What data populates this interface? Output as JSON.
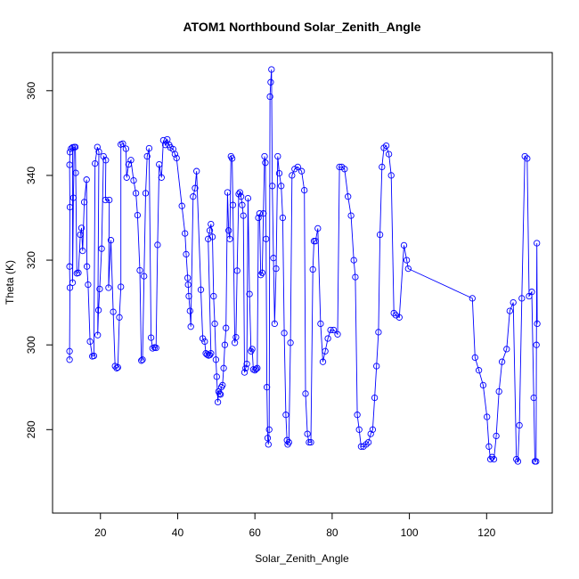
{
  "chart_data": {
    "type": "line",
    "title": "ATOM1 Northbound Solar_Zenith_Angle",
    "xlabel": "Solar_Zenith_Angle",
    "ylabel": "Theta (K)",
    "xlim": [
      7.6,
      137.0
    ],
    "ylim": [
      260.3,
      369.0
    ],
    "xticks": [
      20,
      40,
      60,
      80,
      100,
      120
    ],
    "yticks": [
      280,
      300,
      320,
      340,
      360
    ],
    "grid": false,
    "color": "#0000ff",
    "marker": "open-circle",
    "series": [
      {
        "values": [
          [
            12.0,
            296.5
          ],
          [
            12.0,
            298.5
          ],
          [
            12.1,
            313.5
          ],
          [
            12.0,
            318.5
          ],
          [
            12.1,
            332.5
          ],
          [
            12.0,
            342.5
          ],
          [
            12.1,
            345.5
          ],
          [
            12.4,
            346.3
          ],
          [
            12.8,
            346.6
          ],
          [
            12.8,
            314.7
          ],
          [
            13.0,
            334.7
          ],
          [
            13.2,
            346.7
          ],
          [
            13.5,
            346.7
          ],
          [
            13.6,
            340.6
          ],
          [
            13.9,
            316.9
          ],
          [
            14.3,
            317.0
          ],
          [
            14.8,
            326.0
          ],
          [
            15.1,
            327.6
          ],
          [
            15.4,
            322.2
          ],
          [
            15.8,
            333.7
          ],
          [
            16.4,
            339.0
          ],
          [
            16.5,
            318.5
          ],
          [
            16.8,
            314.2
          ],
          [
            17.3,
            300.8
          ],
          [
            17.9,
            297.3
          ],
          [
            18.3,
            297.4
          ],
          [
            18.6,
            342.8
          ],
          [
            19.2,
            346.7
          ],
          [
            19.6,
            345.6
          ],
          [
            19.3,
            302.3
          ],
          [
            19.5,
            308.2
          ],
          [
            19.8,
            313.2
          ],
          [
            20.3,
            322.7
          ],
          [
            20.8,
            344.5
          ],
          [
            21.4,
            343.6
          ],
          [
            21.3,
            334.2
          ],
          [
            22.3,
            334.2
          ],
          [
            22.1,
            313.5
          ],
          [
            22.7,
            324.7
          ],
          [
            23.3,
            307.8
          ],
          [
            23.8,
            295.0
          ],
          [
            24.2,
            294.5
          ],
          [
            24.5,
            294.7
          ],
          [
            24.9,
            306.5
          ],
          [
            25.3,
            313.7
          ],
          [
            25.3,
            347.3
          ],
          [
            25.8,
            347.5
          ],
          [
            26.6,
            346.3
          ],
          [
            26.8,
            339.5
          ],
          [
            27.3,
            342.6
          ],
          [
            27.9,
            343.6
          ],
          [
            28.6,
            338.8
          ],
          [
            29.2,
            335.8
          ],
          [
            29.6,
            330.6
          ],
          [
            30.2,
            317.6
          ],
          [
            30.6,
            296.3
          ],
          [
            30.9,
            296.5
          ],
          [
            31.3,
            316.2
          ],
          [
            31.7,
            335.8
          ],
          [
            32.1,
            344.5
          ],
          [
            32.6,
            346.4
          ],
          [
            33.1,
            301.7
          ],
          [
            33.5,
            299.2
          ],
          [
            34.0,
            299.4
          ],
          [
            34.4,
            299.3
          ],
          [
            34.8,
            323.6
          ],
          [
            35.2,
            342.6
          ],
          [
            35.8,
            339.5
          ],
          [
            36.3,
            348.3
          ],
          [
            36.8,
            347.2
          ],
          [
            37.3,
            348.5
          ],
          [
            37.8,
            347.2
          ],
          [
            38.1,
            346.6
          ],
          [
            38.8,
            346.2
          ],
          [
            39.3,
            345.0
          ],
          [
            39.7,
            344.1
          ],
          [
            41.1,
            332.8
          ],
          [
            41.9,
            326.3
          ],
          [
            42.2,
            321.4
          ],
          [
            42.6,
            315.8
          ],
          [
            42.7,
            314.2
          ],
          [
            42.9,
            311.5
          ],
          [
            43.2,
            308.0
          ],
          [
            43.4,
            304.3
          ],
          [
            44.0,
            335.0
          ],
          [
            44.5,
            337.0
          ],
          [
            44.9,
            341.0
          ],
          [
            46.0,
            313.0
          ],
          [
            46.5,
            301.5
          ],
          [
            47.0,
            300.8
          ],
          [
            47.3,
            298.0
          ],
          [
            47.6,
            297.7
          ],
          [
            48.0,
            297.5
          ],
          [
            48.3,
            297.6
          ],
          [
            48.6,
            298.0
          ],
          [
            47.9,
            325.0
          ],
          [
            48.3,
            327.0
          ],
          [
            48.6,
            328.5
          ],
          [
            49.0,
            325.5
          ],
          [
            49.3,
            311.5
          ],
          [
            49.6,
            305.0
          ],
          [
            49.9,
            296.5
          ],
          [
            50.1,
            292.5
          ],
          [
            50.4,
            286.5
          ],
          [
            50.6,
            289.0
          ],
          [
            50.9,
            288.5
          ],
          [
            51.1,
            288.3
          ],
          [
            51.3,
            290.0
          ],
          [
            51.6,
            290.5
          ],
          [
            51.9,
            294.5
          ],
          [
            52.2,
            300.0
          ],
          [
            52.5,
            304.0
          ],
          [
            52.9,
            336.0
          ],
          [
            53.2,
            327.0
          ],
          [
            53.5,
            325.0
          ],
          [
            53.8,
            344.5
          ],
          [
            54.1,
            344.0
          ],
          [
            54.3,
            333.0
          ],
          [
            54.8,
            300.5
          ],
          [
            55.1,
            301.8
          ],
          [
            55.4,
            317.5
          ],
          [
            55.8,
            335.6
          ],
          [
            56.1,
            336.0
          ],
          [
            56.4,
            335.0
          ],
          [
            56.7,
            333.0
          ],
          [
            57.0,
            330.5
          ],
          [
            57.3,
            293.5
          ],
          [
            57.6,
            294.5
          ],
          [
            57.9,
            295.5
          ],
          [
            58.2,
            334.6
          ],
          [
            58.6,
            312.0
          ],
          [
            59.0,
            298.5
          ],
          [
            59.3,
            299.0
          ],
          [
            59.6,
            294.2
          ],
          [
            60.0,
            294.0
          ],
          [
            60.3,
            294.3
          ],
          [
            60.6,
            294.5
          ],
          [
            60.9,
            330.0
          ],
          [
            61.2,
            331.0
          ],
          [
            61.5,
            316.5
          ],
          [
            61.9,
            317.0
          ],
          [
            62.2,
            331.0
          ],
          [
            62.5,
            344.5
          ],
          [
            62.7,
            343.0
          ],
          [
            62.9,
            325.0
          ],
          [
            63.1,
            290.0
          ],
          [
            63.3,
            278.0
          ],
          [
            63.5,
            276.5
          ],
          [
            63.7,
            280.0
          ],
          [
            63.9,
            358.6
          ],
          [
            64.1,
            362.0
          ],
          [
            64.3,
            365.0
          ],
          [
            64.5,
            337.5
          ],
          [
            64.8,
            320.5
          ],
          [
            65.1,
            305.0
          ],
          [
            65.5,
            318.0
          ],
          [
            65.9,
            344.5
          ],
          [
            66.3,
            340.5
          ],
          [
            66.8,
            337.5
          ],
          [
            67.2,
            330.0
          ],
          [
            67.6,
            302.8
          ],
          [
            68.0,
            283.5
          ],
          [
            68.3,
            277.5
          ],
          [
            68.5,
            276.5
          ],
          [
            68.8,
            277.0
          ],
          [
            69.2,
            300.5
          ],
          [
            69.6,
            340.0
          ],
          [
            70.3,
            341.5
          ],
          [
            71.1,
            342.0
          ],
          [
            72.1,
            341.0
          ],
          [
            72.8,
            336.5
          ],
          [
            73.1,
            288.5
          ],
          [
            73.6,
            279.0
          ],
          [
            74.0,
            277.0
          ],
          [
            74.5,
            277.0
          ],
          [
            75.0,
            317.8
          ],
          [
            75.3,
            324.5
          ],
          [
            75.7,
            324.5
          ],
          [
            76.3,
            327.5
          ],
          [
            77.0,
            305.0
          ],
          [
            77.6,
            296.0
          ],
          [
            78.2,
            298.5
          ],
          [
            78.9,
            301.5
          ],
          [
            79.6,
            303.5
          ],
          [
            80.4,
            303.5
          ],
          [
            81.4,
            302.5
          ],
          [
            81.9,
            342.0
          ],
          [
            82.5,
            342.0
          ],
          [
            83.2,
            341.5
          ],
          [
            84.1,
            335.0
          ],
          [
            84.9,
            330.5
          ],
          [
            85.6,
            320.0
          ],
          [
            86.0,
            316.0
          ],
          [
            86.5,
            283.5
          ],
          [
            87.0,
            280.0
          ],
          [
            87.5,
            276.0
          ],
          [
            88.1,
            276.0
          ],
          [
            88.8,
            276.5
          ],
          [
            89.4,
            277.0
          ],
          [
            90.0,
            279.0
          ],
          [
            90.5,
            280.0
          ],
          [
            91.0,
            287.5
          ],
          [
            91.5,
            295.0
          ],
          [
            92.0,
            303.0
          ],
          [
            92.4,
            326.0
          ],
          [
            92.9,
            342.0
          ],
          [
            93.4,
            346.5
          ],
          [
            94.0,
            347.0
          ],
          [
            94.7,
            345.0
          ],
          [
            95.3,
            340.0
          ],
          [
            96.0,
            307.5
          ],
          [
            96.5,
            307.0
          ],
          [
            97.4,
            306.5
          ],
          [
            98.6,
            323.5
          ],
          [
            99.3,
            320.0
          ],
          [
            99.7,
            318.0
          ],
          [
            116.3,
            311.0
          ],
          [
            117.0,
            297.0
          ],
          [
            118.0,
            294.0
          ],
          [
            119.1,
            290.5
          ],
          [
            120.1,
            283.0
          ],
          [
            120.6,
            276.0
          ],
          [
            121.0,
            273.0
          ],
          [
            121.4,
            273.5
          ],
          [
            121.9,
            273.0
          ],
          [
            122.5,
            278.5
          ],
          [
            123.2,
            289.0
          ],
          [
            124.0,
            296.0
          ],
          [
            125.2,
            299.0
          ],
          [
            126.0,
            308.0
          ],
          [
            126.9,
            310.0
          ],
          [
            127.7,
            273.0
          ],
          [
            128.1,
            272.5
          ],
          [
            128.5,
            281.0
          ],
          [
            129.1,
            311.0
          ],
          [
            129.9,
            344.5
          ],
          [
            130.5,
            344.0
          ],
          [
            131.0,
            311.5
          ],
          [
            131.7,
            312.5
          ],
          [
            132.2,
            287.5
          ],
          [
            132.5,
            272.5
          ],
          [
            132.8,
            272.5
          ],
          [
            132.9,
            300.0
          ],
          [
            133.0,
            324.0
          ],
          [
            133.1,
            305.0
          ]
        ]
      }
    ]
  }
}
